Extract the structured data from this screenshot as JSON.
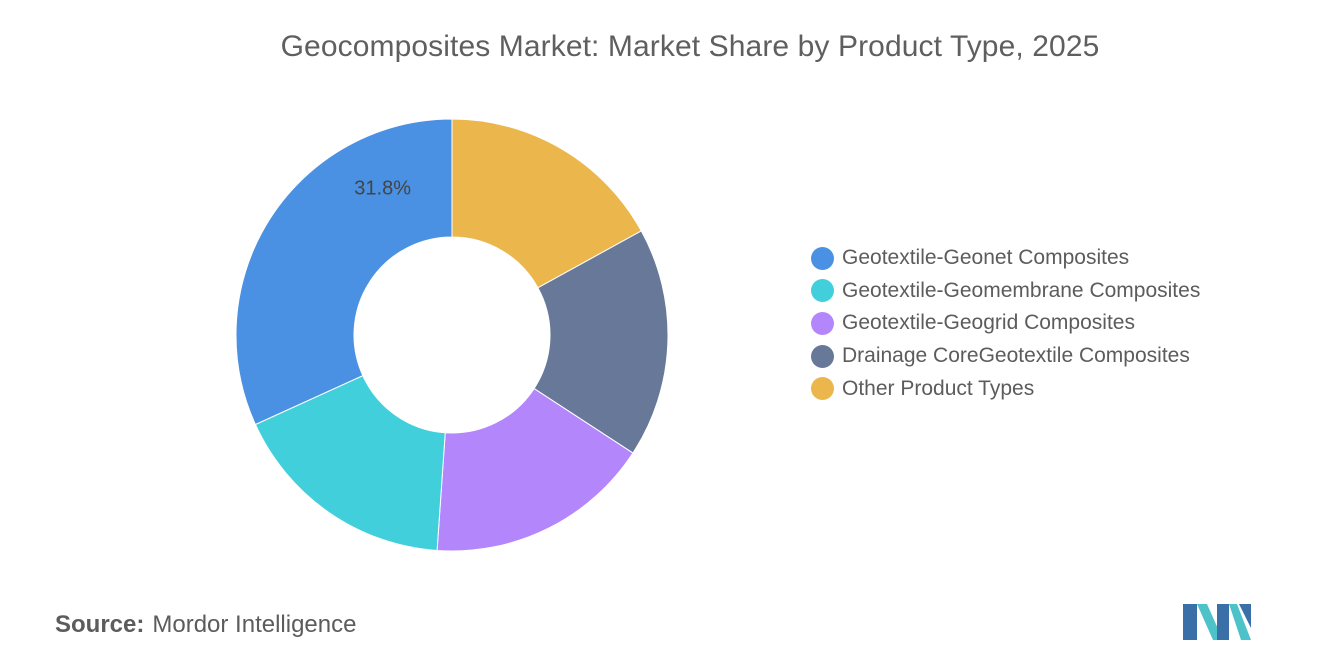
{
  "chart_data": {
    "type": "pie",
    "donut": true,
    "title": "Geocomposites Market: Market Share by Product Type, 2025",
    "labels": [
      "Other Product Types",
      "Drainage CoreGeotextile Composites",
      "Geotextile-Geogrid Composites",
      "Geotextile-Geomembrane Composites",
      "Geotextile-Geonet Composites"
    ],
    "values": [
      17.0,
      17.2,
      16.9,
      17.1,
      31.8
    ],
    "colors": [
      "#ebb64c",
      "#677899",
      "#b386fb",
      "#41d0db",
      "#4a91e3"
    ],
    "data_labels": [
      "",
      "",
      "",
      "",
      "31.8%"
    ],
    "legend_position": "right",
    "legend": [
      {
        "label": "Geotextile-Geonet Composites",
        "color": "#4a91e3"
      },
      {
        "label": "Geotextile-Geomembrane Composites",
        "color": "#41d0db"
      },
      {
        "label": "Geotextile-Geogrid Composites",
        "color": "#b386fb"
      },
      {
        "label": "Drainage CoreGeotextile Composites",
        "color": "#677899"
      },
      {
        "label": "Other Product Types",
        "color": "#ebb64c"
      }
    ]
  },
  "footer": {
    "source_prefix": "Source:",
    "source_name": "Mordor Intelligence"
  },
  "logo": {
    "icon": "mordor-intelligence-logo-icon",
    "colors": [
      "#3b6fa8",
      "#4dc3c9"
    ]
  }
}
